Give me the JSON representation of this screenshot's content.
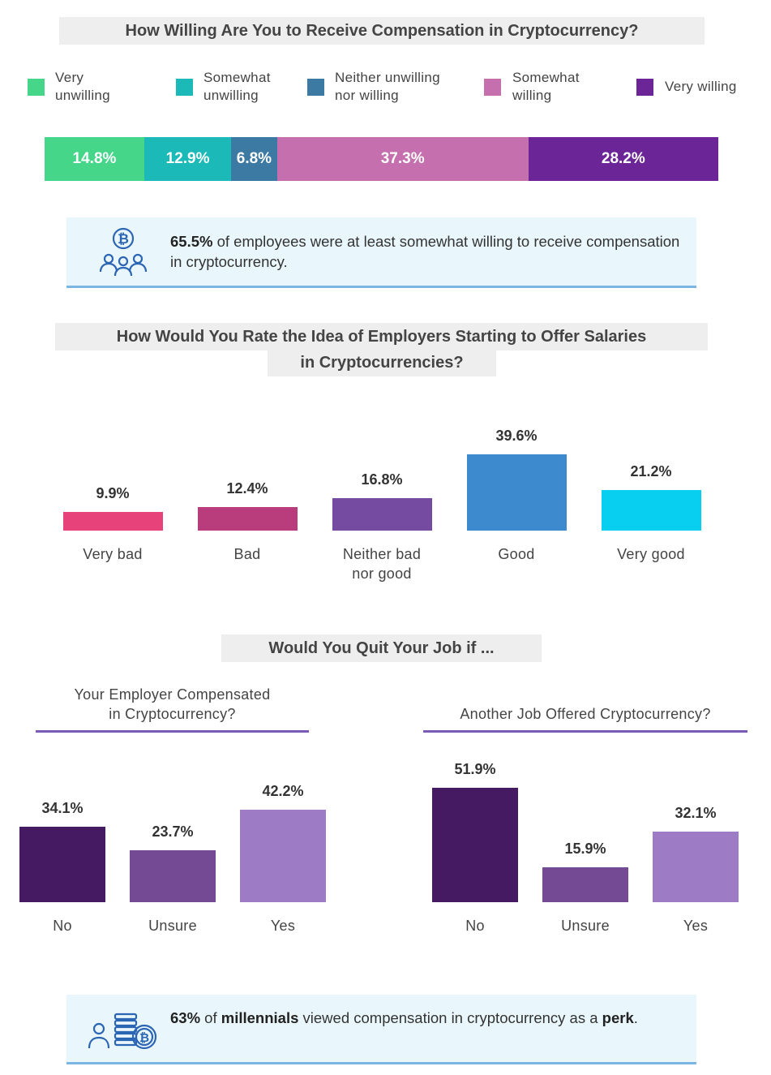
{
  "section1": {
    "title": "How Willing Are You to Receive Compensation in Cryptocurrency?",
    "legend": [
      {
        "label": "Very\nunwilling",
        "color": "#45d68a"
      },
      {
        "label": "Somewhat\nunwilling",
        "color": "#1bbab8"
      },
      {
        "label": "Neither unwilling\nnor willing",
        "color": "#3d7aa3"
      },
      {
        "label": "Somewhat\nwilling",
        "color": "#c56fae"
      },
      {
        "label": "Very willing",
        "color": "#6b2597"
      }
    ],
    "callout": {
      "highlight": "65.5%",
      "text": " of employees were at least somewhat willing to receive compensation in cryptocurrency."
    }
  },
  "section2": {
    "title_line1": "How Would You Rate the Idea of Employers Starting to Offer Salaries",
    "title_line2": "in Cryptocurrencies?"
  },
  "section3": {
    "title": "Would You Quit Your Job if ...",
    "left_subtitle": "Your Employer Compensated\nin Cryptocurrency?",
    "right_subtitle": "Another Job Offered Cryptocurrency?"
  },
  "footer_callout": {
    "highlight1": "63%",
    "text1": " of ",
    "highlight2": "millennials",
    "text2": " viewed compensation in cryptocurrency as a ",
    "highlight3": "perk",
    "text3": "."
  },
  "chart_data": [
    {
      "type": "bar",
      "stacked": true,
      "orientation": "horizontal",
      "title": "How Willing Are You to Receive Compensation in Cryptocurrency?",
      "categories": [
        "Very unwilling",
        "Somewhat unwilling",
        "Neither unwilling nor willing",
        "Somewhat willing",
        "Very willing"
      ],
      "values": [
        14.8,
        12.9,
        6.8,
        37.3,
        28.2
      ],
      "labels": [
        "14.8%",
        "12.9%",
        "6.8%",
        "37.3%",
        "28.2%"
      ],
      "colors": [
        "#45d68a",
        "#1bbab8",
        "#3d7aa3",
        "#c56fae",
        "#6b2597"
      ],
      "unit": "%"
    },
    {
      "type": "bar",
      "title": "How Would You Rate the Idea of Employers Starting to Offer Salaries in Cryptocurrencies?",
      "categories": [
        "Very bad",
        "Bad",
        "Neither bad\nnor good",
        "Good",
        "Very good"
      ],
      "values": [
        9.9,
        12.4,
        16.8,
        39.6,
        21.2
      ],
      "labels": [
        "9.9%",
        "12.4%",
        "16.8%",
        "39.6%",
        "21.2%"
      ],
      "colors": [
        "#e8427a",
        "#b93c7c",
        "#744ba0",
        "#3d8bce",
        "#08cff0"
      ],
      "unit": "%"
    },
    {
      "type": "bar",
      "title": "Your Employer Compensated in Cryptocurrency?",
      "categories": [
        "No",
        "Unsure",
        "Yes"
      ],
      "values": [
        34.1,
        23.7,
        42.2
      ],
      "labels": [
        "34.1%",
        "23.7%",
        "42.2%"
      ],
      "colors": [
        "#461a63",
        "#744a94",
        "#9d7cc5"
      ],
      "unit": "%"
    },
    {
      "type": "bar",
      "title": "Another Job Offered Cryptocurrency?",
      "categories": [
        "No",
        "Unsure",
        "Yes"
      ],
      "values": [
        51.9,
        15.9,
        32.1
      ],
      "labels": [
        "51.9%",
        "15.9%",
        "32.1%"
      ],
      "colors": [
        "#461a63",
        "#744a94",
        "#9d7cc5"
      ],
      "unit": "%"
    }
  ]
}
